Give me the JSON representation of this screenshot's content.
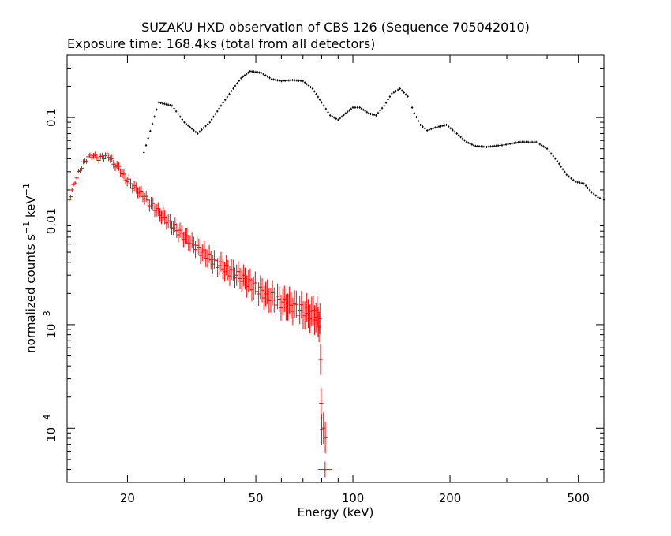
{
  "chart_data": {
    "type": "scatter",
    "title": "SUZAKU HXD observation of CBS 126 (Sequence 705042010)",
    "subtitle": "Exposure time: 168.4ks (total from all detectors)",
    "xlabel": "Energy (keV)",
    "ylabel": "normalized counts s",
    "ylabel_sup1": "−1",
    "ylabel_mid": " keV",
    "ylabel_sup2": "−1",
    "x_scale": "log",
    "y_scale": "log",
    "xlim": [
      13,
      600
    ],
    "ylim": [
      3e-05,
      0.4
    ],
    "x_ticks": [
      {
        "value": 20,
        "label": "20"
      },
      {
        "value": 50,
        "label": "50"
      },
      {
        "value": 100,
        "label": "100"
      },
      {
        "value": 200,
        "label": "200"
      },
      {
        "value": 500,
        "label": "500"
      }
    ],
    "y_ticks": [
      {
        "value": 0.1,
        "label": "0.1"
      },
      {
        "value": 0.01,
        "label": "0.01"
      },
      {
        "value": 0.001,
        "label": "10",
        "sup": "−3"
      },
      {
        "value": 0.0001,
        "label": "10",
        "sup": "−4"
      }
    ],
    "grid": false,
    "legend": "none",
    "series": [
      {
        "color": "#ff0000",
        "points": [
          [
            13.2,
            0.016
          ],
          [
            13.6,
            0.022
          ],
          [
            14.1,
            0.029
          ],
          [
            14.6,
            0.036
          ],
          [
            15.1,
            0.041
          ],
          [
            15.7,
            0.043
          ],
          [
            16.3,
            0.04
          ],
          [
            16.9,
            0.042
          ],
          [
            17.5,
            0.043
          ],
          [
            18.1,
            0.036
          ],
          [
            18.8,
            0.033
          ],
          [
            19.5,
            0.027
          ],
          [
            20.2,
            0.024
          ],
          [
            21,
            0.021
          ],
          [
            21.8,
            0.019
          ],
          [
            22.6,
            0.017
          ],
          [
            23.4,
            0.015
          ],
          [
            24.3,
            0.0135
          ],
          [
            25.2,
            0.0118
          ],
          [
            26.1,
            0.0108
          ],
          [
            27.1,
            0.0095
          ],
          [
            28.1,
            0.0086
          ],
          [
            29.1,
            0.0076
          ],
          [
            30.2,
            0.007
          ],
          [
            31.3,
            0.0062
          ],
          [
            32.5,
            0.0057
          ],
          [
            33.7,
            0.0051
          ],
          [
            35,
            0.0047
          ],
          [
            36.3,
            0.0043
          ],
          [
            37.6,
            0.004
          ],
          [
            39,
            0.0037
          ],
          [
            40.5,
            0.0034
          ],
          [
            42,
            0.0032
          ],
          [
            43.6,
            0.003
          ],
          [
            45.2,
            0.0028
          ],
          [
            46.9,
            0.0026
          ],
          [
            48.6,
            0.0024
          ],
          [
            50.4,
            0.0022
          ],
          [
            52.3,
            0.0021
          ],
          [
            54.3,
            0.0019
          ],
          [
            56.3,
            0.0018
          ],
          [
            58.4,
            0.0017
          ],
          [
            60.6,
            0.0016
          ],
          [
            62.8,
            0.00155
          ],
          [
            65.1,
            0.0015
          ],
          [
            67.6,
            0.0014
          ],
          [
            70.1,
            0.00135
          ],
          [
            72.7,
            0.0013
          ],
          [
            75.4,
            0.00128
          ],
          [
            77.5,
            0.0012
          ],
          [
            79,
            0.001
          ],
          [
            80,
            9e-05
          ]
        ]
      },
      {
        "color": "#000000",
        "points": [
          [
            22.5,
            0.046
          ],
          [
            25,
            0.14
          ],
          [
            27.5,
            0.13
          ],
          [
            30,
            0.09
          ],
          [
            33,
            0.07
          ],
          [
            36,
            0.09
          ],
          [
            39,
            0.13
          ],
          [
            42,
            0.18
          ],
          [
            45,
            0.24
          ],
          [
            48,
            0.28
          ],
          [
            52,
            0.27
          ],
          [
            56,
            0.235
          ],
          [
            60,
            0.225
          ],
          [
            65,
            0.23
          ],
          [
            70,
            0.225
          ],
          [
            75,
            0.19
          ],
          [
            80,
            0.14
          ],
          [
            85,
            0.105
          ],
          [
            90,
            0.095
          ],
          [
            95,
            0.11
          ],
          [
            100,
            0.125
          ],
          [
            105,
            0.125
          ],
          [
            112,
            0.11
          ],
          [
            118,
            0.105
          ],
          [
            125,
            0.13
          ],
          [
            132,
            0.17
          ],
          [
            140,
            0.19
          ],
          [
            148,
            0.16
          ],
          [
            155,
            0.11
          ],
          [
            162,
            0.085
          ],
          [
            170,
            0.075
          ],
          [
            180,
            0.08
          ],
          [
            195,
            0.085
          ],
          [
            210,
            0.07
          ],
          [
            225,
            0.058
          ],
          [
            240,
            0.053
          ],
          [
            260,
            0.052
          ],
          [
            290,
            0.054
          ],
          [
            330,
            0.058
          ],
          [
            370,
            0.058
          ],
          [
            400,
            0.05
          ],
          [
            430,
            0.038
          ],
          [
            460,
            0.028
          ],
          [
            490,
            0.024
          ],
          [
            520,
            0.023
          ],
          [
            550,
            0.019
          ],
          [
            575,
            0.017
          ],
          [
            600,
            0.016
          ]
        ]
      }
    ]
  }
}
